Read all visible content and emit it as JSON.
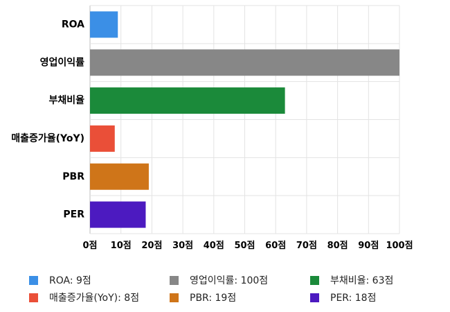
{
  "chart_data": {
    "type": "bar",
    "orientation": "horizontal",
    "categories": [
      "ROA",
      "영업이익률",
      "부채비율",
      "매출증가율(YoY)",
      "PBR",
      "PER"
    ],
    "values": [
      9,
      100,
      63,
      8,
      19,
      18
    ],
    "colors": [
      "#3b8fe6",
      "#878787",
      "#1b8a3a",
      "#ea4f38",
      "#cf7519",
      "#4c1ac0"
    ],
    "xlim": [
      0,
      100
    ],
    "x_ticks": [
      0,
      10,
      20,
      30,
      40,
      50,
      60,
      70,
      80,
      90,
      100
    ],
    "tick_labels": [
      "0점",
      "10점",
      "20점",
      "30점",
      "40점",
      "50점",
      "60점",
      "70점",
      "80점",
      "90점",
      "100점"
    ],
    "grid": true,
    "legend_position": "bottom",
    "legend": [
      {
        "label": "ROA: 9점",
        "color": "#3b8fe6"
      },
      {
        "label": "영업이익률: 100점",
        "color": "#878787"
      },
      {
        "label": "부채비율: 63점",
        "color": "#1b8a3a"
      },
      {
        "label": "매출증가율(YoY): 8점",
        "color": "#ea4f38"
      },
      {
        "label": "PBR: 19점",
        "color": "#cf7519"
      },
      {
        "label": "PER: 18점",
        "color": "#4c1ac0"
      }
    ]
  }
}
